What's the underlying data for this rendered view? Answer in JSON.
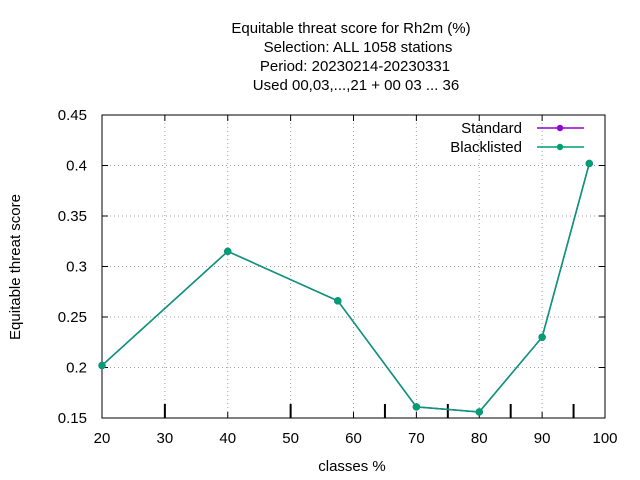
{
  "chart_data": {
    "type": "line",
    "title_lines": [
      "Equitable threat score  for Rh2m (%)",
      "Selection: ALL   1058 stations",
      "Period: 20230214-20230331",
      "Used  00,03,...,21  + 00 03 ... 36"
    ],
    "xlabel": "classes %",
    "ylabel": "Equitable threat score",
    "xlim": [
      20,
      100
    ],
    "ylim": [
      0.15,
      0.45
    ],
    "xticks": [
      20,
      30,
      40,
      50,
      60,
      70,
      80,
      90,
      100
    ],
    "yticks": [
      0.15,
      0.2,
      0.25,
      0.3,
      0.35,
      0.4,
      0.45
    ],
    "xtick_labels": [
      "20",
      "30",
      "40",
      "50",
      "60",
      "70",
      "80",
      "90",
      "100"
    ],
    "ytick_labels": [
      "0.15",
      "0.2",
      "0.25",
      "0.3",
      "0.35",
      "0.4",
      "0.45"
    ],
    "grid": true,
    "legend_position": "top-right",
    "inner_tick_marks_x": [
      30,
      50,
      65,
      75,
      85,
      95
    ],
    "series": [
      {
        "name": "Standard",
        "color": "#9400d3",
        "x": [
          20,
          40,
          57.5,
          70,
          80,
          90,
          97.5
        ],
        "y": [
          0.202,
          0.315,
          0.266,
          0.161,
          0.156,
          0.23,
          0.402
        ]
      },
      {
        "name": "Blacklisted",
        "color": "#009e73",
        "x": [
          20,
          40,
          57.5,
          70,
          80,
          90,
          97.5
        ],
        "y": [
          0.202,
          0.315,
          0.266,
          0.161,
          0.156,
          0.23,
          0.402
        ]
      }
    ]
  }
}
